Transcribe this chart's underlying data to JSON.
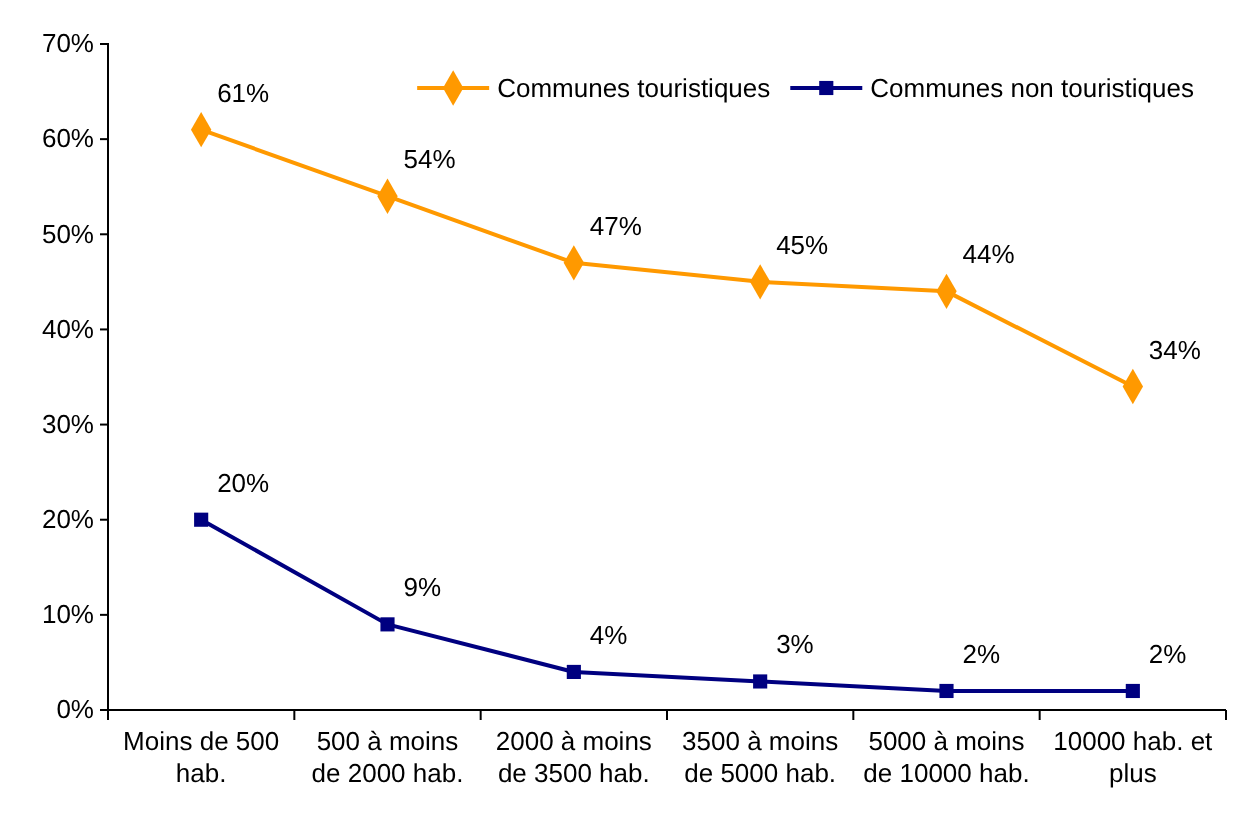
{
  "chart_data": {
    "type": "line",
    "categories": [
      "Moins de 500 hab.",
      "500 à moins de 2000 hab.",
      "2000 à moins de 3500 hab.",
      "3500 à moins de 5000 hab.",
      "5000 à moins de 10000 hab.",
      "10000 hab. et plus"
    ],
    "series": [
      {
        "name": "Communes touristiques",
        "color": "#ff9900",
        "marker": "diamond",
        "values": [
          61,
          54,
          47,
          45,
          44,
          34
        ],
        "value_labels": [
          "61%",
          "54%",
          "47%",
          "45%",
          "44%",
          "34%"
        ]
      },
      {
        "name": "Communes non touristiques",
        "color": "#000080",
        "marker": "square",
        "values": [
          20,
          9,
          4,
          3,
          2,
          2
        ],
        "value_labels": [
          "20%",
          "9%",
          "4%",
          "3%",
          "2%",
          "2%"
        ]
      }
    ],
    "ylim": [
      0,
      70
    ],
    "yticks": [
      {
        "value": 0,
        "label": "0%"
      },
      {
        "value": 10,
        "label": "10%"
      },
      {
        "value": 20,
        "label": "20%"
      },
      {
        "value": 30,
        "label": "30%"
      },
      {
        "value": 40,
        "label": "40%"
      },
      {
        "value": 50,
        "label": "50%"
      },
      {
        "value": 60,
        "label": "60%"
      },
      {
        "value": 70,
        "label": "70%"
      }
    ],
    "legend": "top right",
    "grid": false
  }
}
